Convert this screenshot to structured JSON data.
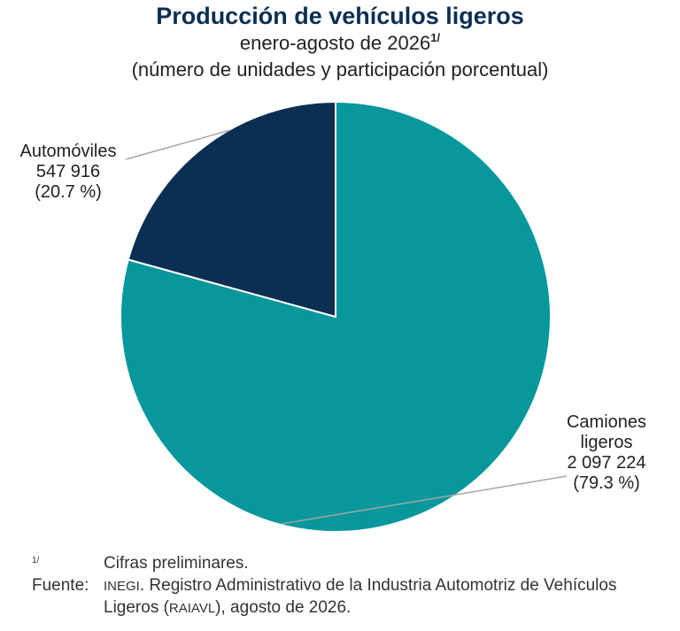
{
  "header": {
    "title": "Producción de vehículos ligeros",
    "subtitle": "enero-agosto de 2026",
    "subtitle_note": "1/",
    "subtitle2": "(número de unidades y participación porcentual)"
  },
  "chart_data": {
    "type": "pie",
    "slices": [
      {
        "label": "Automóviles",
        "label_lines": [
          "Automóviles"
        ],
        "value": 547916,
        "value_text": "547 916",
        "percent": 20.7,
        "percent_text": "(20.7 %)",
        "color": "#0b2f52"
      },
      {
        "label": "Camiones ligeros",
        "label_lines": [
          "Camiones",
          "ligeros"
        ],
        "value": 2097224,
        "value_text": "2 097 224",
        "percent": 79.3,
        "percent_text": "(79.3 %)",
        "color": "#08979c"
      }
    ],
    "start_angle_deg": 0,
    "direction": "counterclockwise",
    "slice_separator_color": "#ffffff",
    "leader_color": "#a6a6a6"
  },
  "footer": {
    "note_mark": "1/",
    "note_text": "Cifras preliminares.",
    "source_label": "Fuente:",
    "source_part1": "INEGI",
    "source_part2": ". Registro Administrativo de la Industria Automotriz de Vehículos Ligeros (",
    "source_part3": "RAIAVL",
    "source_part4": "), agosto de 2026."
  }
}
